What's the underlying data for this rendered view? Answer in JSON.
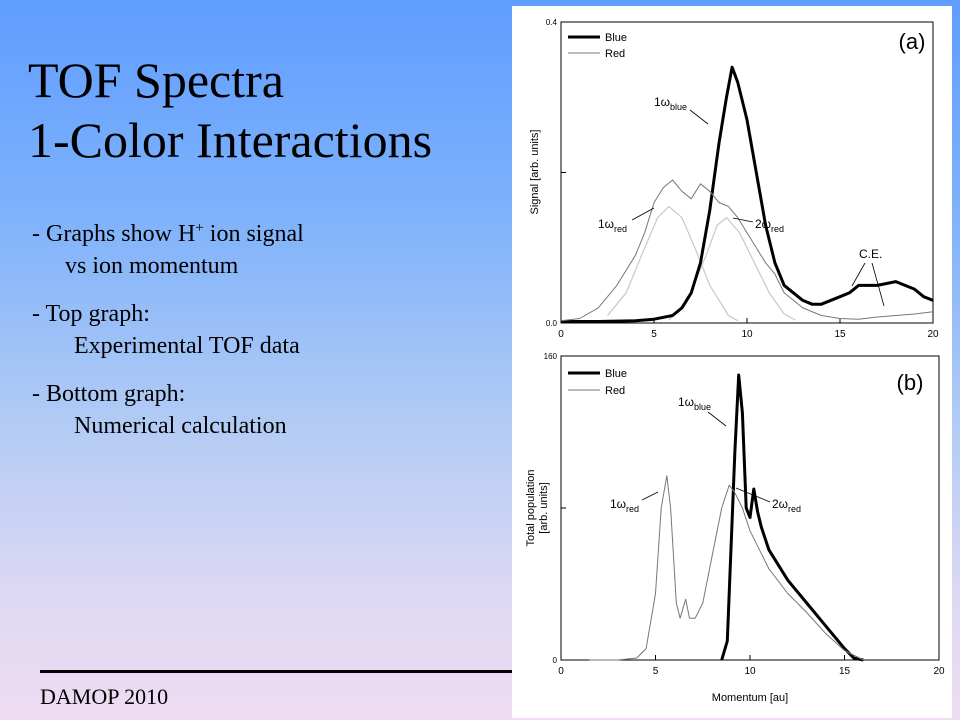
{
  "slide": {
    "title_line1": "TOF Spectra",
    "title_line2": "1-Color Interactions",
    "bullet1_line1": "- Graphs show H",
    "bullet1_sup": "+",
    "bullet1_line1_end": " ion signal",
    "bullet1_line2": "vs ion momentum",
    "bullet2_line1": "- Top graph:",
    "bullet2_line2": "Experimental TOF data",
    "bullet3_line1": "- Bottom graph:",
    "bullet3_line2": "Numerical calculation",
    "footer": "DAMOP 2010"
  },
  "chart_data": [
    {
      "type": "line",
      "panel_label": "(a)",
      "ylabel": "Signal [arb. units]",
      "xlim": [
        0,
        20
      ],
      "ylim": [
        0,
        0.4
      ],
      "x_ticks": [
        "0",
        "5",
        "10",
        "15",
        "20"
      ],
      "y_ticks": [
        "0.0",
        "0.4"
      ],
      "legend": {
        "position": "top-left",
        "entries": [
          "Blue",
          "Red"
        ]
      },
      "series": [
        {
          "name": "Blue",
          "x": [
            0,
            2,
            4,
            5,
            6,
            6.5,
            7,
            7.5,
            8,
            8.5,
            8.9,
            9.2,
            9.5,
            10,
            10.5,
            11,
            11.5,
            12,
            12.5,
            13,
            13.5,
            14,
            15,
            15.5,
            16,
            17,
            18,
            19,
            19.5,
            20
          ],
          "y": [
            0.002,
            0.002,
            0.003,
            0.005,
            0.01,
            0.02,
            0.04,
            0.08,
            0.15,
            0.24,
            0.3,
            0.34,
            0.32,
            0.27,
            0.2,
            0.13,
            0.08,
            0.05,
            0.04,
            0.03,
            0.025,
            0.025,
            0.035,
            0.04,
            0.05,
            0.05,
            0.055,
            0.045,
            0.035,
            0.03
          ]
        },
        {
          "name": "Red",
          "x": [
            0,
            1,
            2,
            3,
            4,
            4.5,
            5,
            5.5,
            6,
            6.5,
            7,
            7.5,
            8,
            8.5,
            9,
            9.5,
            10,
            10.5,
            11,
            11.5,
            12,
            13,
            14,
            15,
            16,
            17,
            18,
            19,
            20
          ],
          "y": [
            0.003,
            0.006,
            0.02,
            0.05,
            0.09,
            0.12,
            0.16,
            0.18,
            0.19,
            0.175,
            0.165,
            0.185,
            0.175,
            0.16,
            0.155,
            0.14,
            0.12,
            0.1,
            0.08,
            0.065,
            0.04,
            0.02,
            0.01,
            0.006,
            0.005,
            0.008,
            0.01,
            0.012,
            0.015
          ]
        }
      ],
      "fits": [
        {
          "x": [
            2.5,
            3.5,
            4.5,
            5.2,
            5.8,
            6.5,
            7.2,
            8.0,
            9.0,
            9.5
          ],
          "y": [
            0.01,
            0.04,
            0.1,
            0.14,
            0.155,
            0.14,
            0.1,
            0.05,
            0.01,
            0.003
          ]
        },
        {
          "x": [
            5.8,
            6.8,
            7.8,
            8.4,
            8.9,
            9.6,
            10.4,
            11.2,
            12.0,
            12.6
          ],
          "y": [
            0.004,
            0.03,
            0.09,
            0.13,
            0.14,
            0.12,
            0.08,
            0.04,
            0.012,
            0.004
          ]
        }
      ],
      "annotations": [
        {
          "main": "1ω",
          "sub": "blue"
        },
        {
          "main": "1ω",
          "sub": "red"
        },
        {
          "main": "2ω",
          "sub": "red"
        },
        {
          "main": "C.E.",
          "sub": ""
        }
      ]
    },
    {
      "type": "line",
      "panel_label": "(b)",
      "ylabel": "Total population [arb. units]",
      "xlabel": "Momentum [au]",
      "xlim": [
        0,
        20
      ],
      "ylim": [
        0,
        160
      ],
      "x_ticks": [
        "0",
        "5",
        "10",
        "15",
        "20"
      ],
      "y_ticks": [
        "0",
        "160"
      ],
      "legend": {
        "position": "top-left",
        "entries": [
          "Blue",
          "Red"
        ]
      },
      "series": [
        {
          "name": "Blue",
          "x": [
            8.5,
            8.8,
            9.0,
            9.2,
            9.4,
            9.6,
            9.8,
            10.0,
            10.2,
            10.4,
            10.6,
            11,
            12,
            13,
            14,
            15,
            15.5,
            16
          ],
          "y": [
            0,
            10,
            60,
            110,
            150,
            130,
            80,
            75,
            90,
            78,
            70,
            58,
            42,
            30,
            18,
            6,
            1,
            0
          ]
        },
        {
          "name": "Red",
          "x": [
            1.5,
            3,
            4,
            4.5,
            5,
            5.3,
            5.6,
            5.8,
            6.1,
            6.3,
            6.6,
            6.8,
            7.1,
            7.5,
            8.0,
            8.5,
            8.9,
            9.2,
            9.6,
            10,
            11,
            12,
            13,
            14,
            15,
            16
          ],
          "y": [
            0,
            0,
            1,
            6,
            35,
            80,
            97,
            80,
            30,
            22,
            32,
            22,
            22,
            30,
            55,
            80,
            92,
            88,
            80,
            68,
            48,
            35,
            25,
            14,
            5,
            0
          ]
        }
      ],
      "annotations": [
        {
          "main": "1ω",
          "sub": "blue"
        },
        {
          "main": "1ω",
          "sub": "red"
        },
        {
          "main": "2ω",
          "sub": "red"
        }
      ]
    }
  ]
}
